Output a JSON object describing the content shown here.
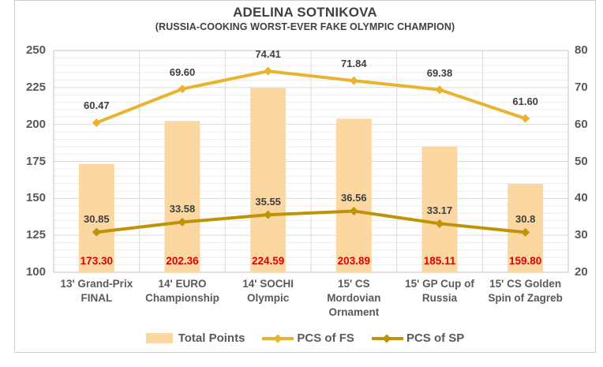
{
  "chart_data": {
    "type": "combo-bar-line",
    "title": "ADELINA SOTNIKOVA",
    "subtitle": "(RUSSIA-COOKING WORST-EVER FAKE OLYMPIC CHAMPION)",
    "categories": [
      "13' Grand-Prix FINAL",
      "14' EURO Championship",
      "14' SOCHI Olympic",
      "15' CS Mordovian Ornament",
      "15' GP Cup of Russia",
      "15' CS Golden Spin of Zagreb"
    ],
    "left_axis": {
      "min": 100,
      "max": 250,
      "ticks": [
        "250",
        "225",
        "200",
        "175",
        "150",
        "125",
        "100"
      ],
      "major_step": 25,
      "minor_step": 5
    },
    "right_axis": {
      "min": 20,
      "max": 80,
      "ticks": [
        "80",
        "70",
        "60",
        "50",
        "40",
        "30",
        "20"
      ],
      "major_step": 10
    },
    "bar_series": {
      "name": "Total Points",
      "axis": "left",
      "values": [
        173.3,
        202.36,
        224.59,
        203.89,
        185.11,
        159.8
      ],
      "labels": [
        "173.30",
        "202.36",
        "224.59",
        "203.89",
        "185.11",
        "159.80"
      ],
      "color": "#fbd8a2",
      "label_color": "#e00000"
    },
    "line_series": [
      {
        "name": "PCS of FS",
        "axis": "right",
        "values": [
          60.47,
          69.6,
          74.41,
          71.84,
          69.38,
          61.6
        ],
        "labels": [
          "60.47",
          "69.60",
          "74.41",
          "71.84",
          "69.38",
          "61.60"
        ],
        "color": "#e9b32f"
      },
      {
        "name": "PCS of SP",
        "axis": "right",
        "values": [
          30.85,
          33.58,
          35.55,
          36.56,
          33.17,
          30.8
        ],
        "labels": [
          "30.85",
          "33.58",
          "35.55",
          "36.56",
          "33.17",
          "30.8"
        ],
        "color": "#c09207"
      }
    ],
    "legend": {
      "position": "bottom",
      "items": [
        "Total Points",
        "PCS of FS",
        "PCS of SP"
      ]
    },
    "grid": {
      "major_color": "#d9d9d9",
      "minor_color": "#ededed",
      "border_color": "#c6c6c6"
    },
    "text_colors": {
      "title": "#404040",
      "axis": "#595959",
      "data_label": "#3f3f3f"
    }
  }
}
